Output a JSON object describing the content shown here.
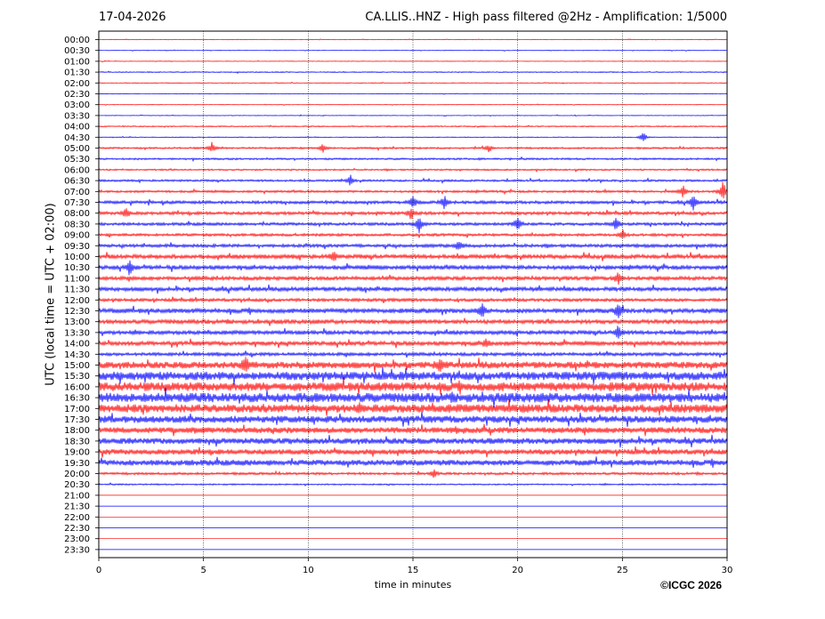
{
  "header": {
    "date": "17-04-2026",
    "title": "CA.LLIS..HNZ - High pass filtered @2Hz - Amplification: 1/5000"
  },
  "footer": {
    "copyright": "©ICGC 2026"
  },
  "chart_data": {
    "type": "line",
    "title": "CA.LLIS..HNZ - High pass filtered @2Hz - Amplification: 1/5000",
    "xlabel": "time in minutes",
    "ylabel": "UTC (local time = UTC + 02:00)",
    "xlim": [
      0,
      30
    ],
    "x_ticks": [
      0,
      5,
      10,
      15,
      20,
      25,
      30
    ],
    "grid": "vertical dotted lines at 5-minute ticks",
    "trace_colors": [
      "#ff0000",
      "#0000ff"
    ],
    "rows": [
      "00:00",
      "00:30",
      "01:00",
      "01:30",
      "02:00",
      "02:30",
      "03:00",
      "03:30",
      "04:00",
      "04:30",
      "05:00",
      "05:30",
      "06:00",
      "06:30",
      "07:00",
      "07:30",
      "08:00",
      "08:30",
      "09:00",
      "09:30",
      "10:00",
      "10:30",
      "11:00",
      "11:30",
      "12:00",
      "12:30",
      "13:00",
      "13:30",
      "14:00",
      "14:30",
      "15:00",
      "15:30",
      "16:00",
      "16:30",
      "17:00",
      "17:30",
      "18:00",
      "18:30",
      "19:00",
      "19:30",
      "20:00",
      "20:30",
      "21:00",
      "21:30",
      "22:00",
      "22:30",
      "23:00",
      "23:30"
    ],
    "noise_level": [
      0.3,
      0.3,
      0.3,
      0.5,
      0.4,
      0.3,
      0.3,
      0.3,
      0.6,
      0.4,
      0.9,
      0.9,
      0.8,
      1.0,
      1.1,
      1.5,
      1.5,
      1.4,
      1.3,
      1.6,
      2.0,
      2.0,
      1.8,
      2.0,
      1.5,
      2.2,
      2.0,
      1.9,
      2.0,
      1.6,
      3.2,
      4.0,
      4.2,
      4.5,
      4.0,
      3.3,
      2.8,
      2.8,
      2.5,
      2.7,
      1.2,
      0.7,
      0.0,
      0.0,
      0.0,
      0.0,
      0.0,
      0.0
    ],
    "events": [
      {
        "row": "04:30",
        "minute": 26.0,
        "amp": 6
      },
      {
        "row": "05:00",
        "minute": 5.4,
        "amp": 7
      },
      {
        "row": "05:00",
        "minute": 10.7,
        "amp": 6
      },
      {
        "row": "05:00",
        "minute": 18.6,
        "amp": 4
      },
      {
        "row": "06:30",
        "minute": 12.0,
        "amp": 7
      },
      {
        "row": "07:00",
        "minute": 27.9,
        "amp": 8
      },
      {
        "row": "07:00",
        "minute": 29.8,
        "amp": 12
      },
      {
        "row": "07:30",
        "minute": 15.0,
        "amp": 8
      },
      {
        "row": "07:30",
        "minute": 16.5,
        "amp": 9
      },
      {
        "row": "07:30",
        "minute": 28.4,
        "amp": 9
      },
      {
        "row": "08:00",
        "minute": 14.9,
        "amp": 8
      },
      {
        "row": "08:00",
        "minute": 1.3,
        "amp": 7
      },
      {
        "row": "08:30",
        "minute": 15.3,
        "amp": 10
      },
      {
        "row": "08:30",
        "minute": 20.0,
        "amp": 9
      },
      {
        "row": "08:30",
        "minute": 24.7,
        "amp": 8
      },
      {
        "row": "09:00",
        "minute": 25.0,
        "amp": 6
      },
      {
        "row": "09:30",
        "minute": 17.2,
        "amp": 6
      },
      {
        "row": "10:00",
        "minute": 11.2,
        "amp": 6
      },
      {
        "row": "10:30",
        "minute": 1.5,
        "amp": 8
      },
      {
        "row": "11:00",
        "minute": 24.8,
        "amp": 8
      },
      {
        "row": "12:30",
        "minute": 18.3,
        "amp": 8
      },
      {
        "row": "12:30",
        "minute": 24.8,
        "amp": 9
      },
      {
        "row": "13:30",
        "minute": 24.8,
        "amp": 9
      },
      {
        "row": "14:00",
        "minute": 18.5,
        "amp": 6
      },
      {
        "row": "15:00",
        "minute": 7.0,
        "amp": 9
      },
      {
        "row": "15:00",
        "minute": 16.3,
        "amp": 9
      },
      {
        "row": "20:00",
        "minute": 16.0,
        "amp": 5
      }
    ]
  }
}
